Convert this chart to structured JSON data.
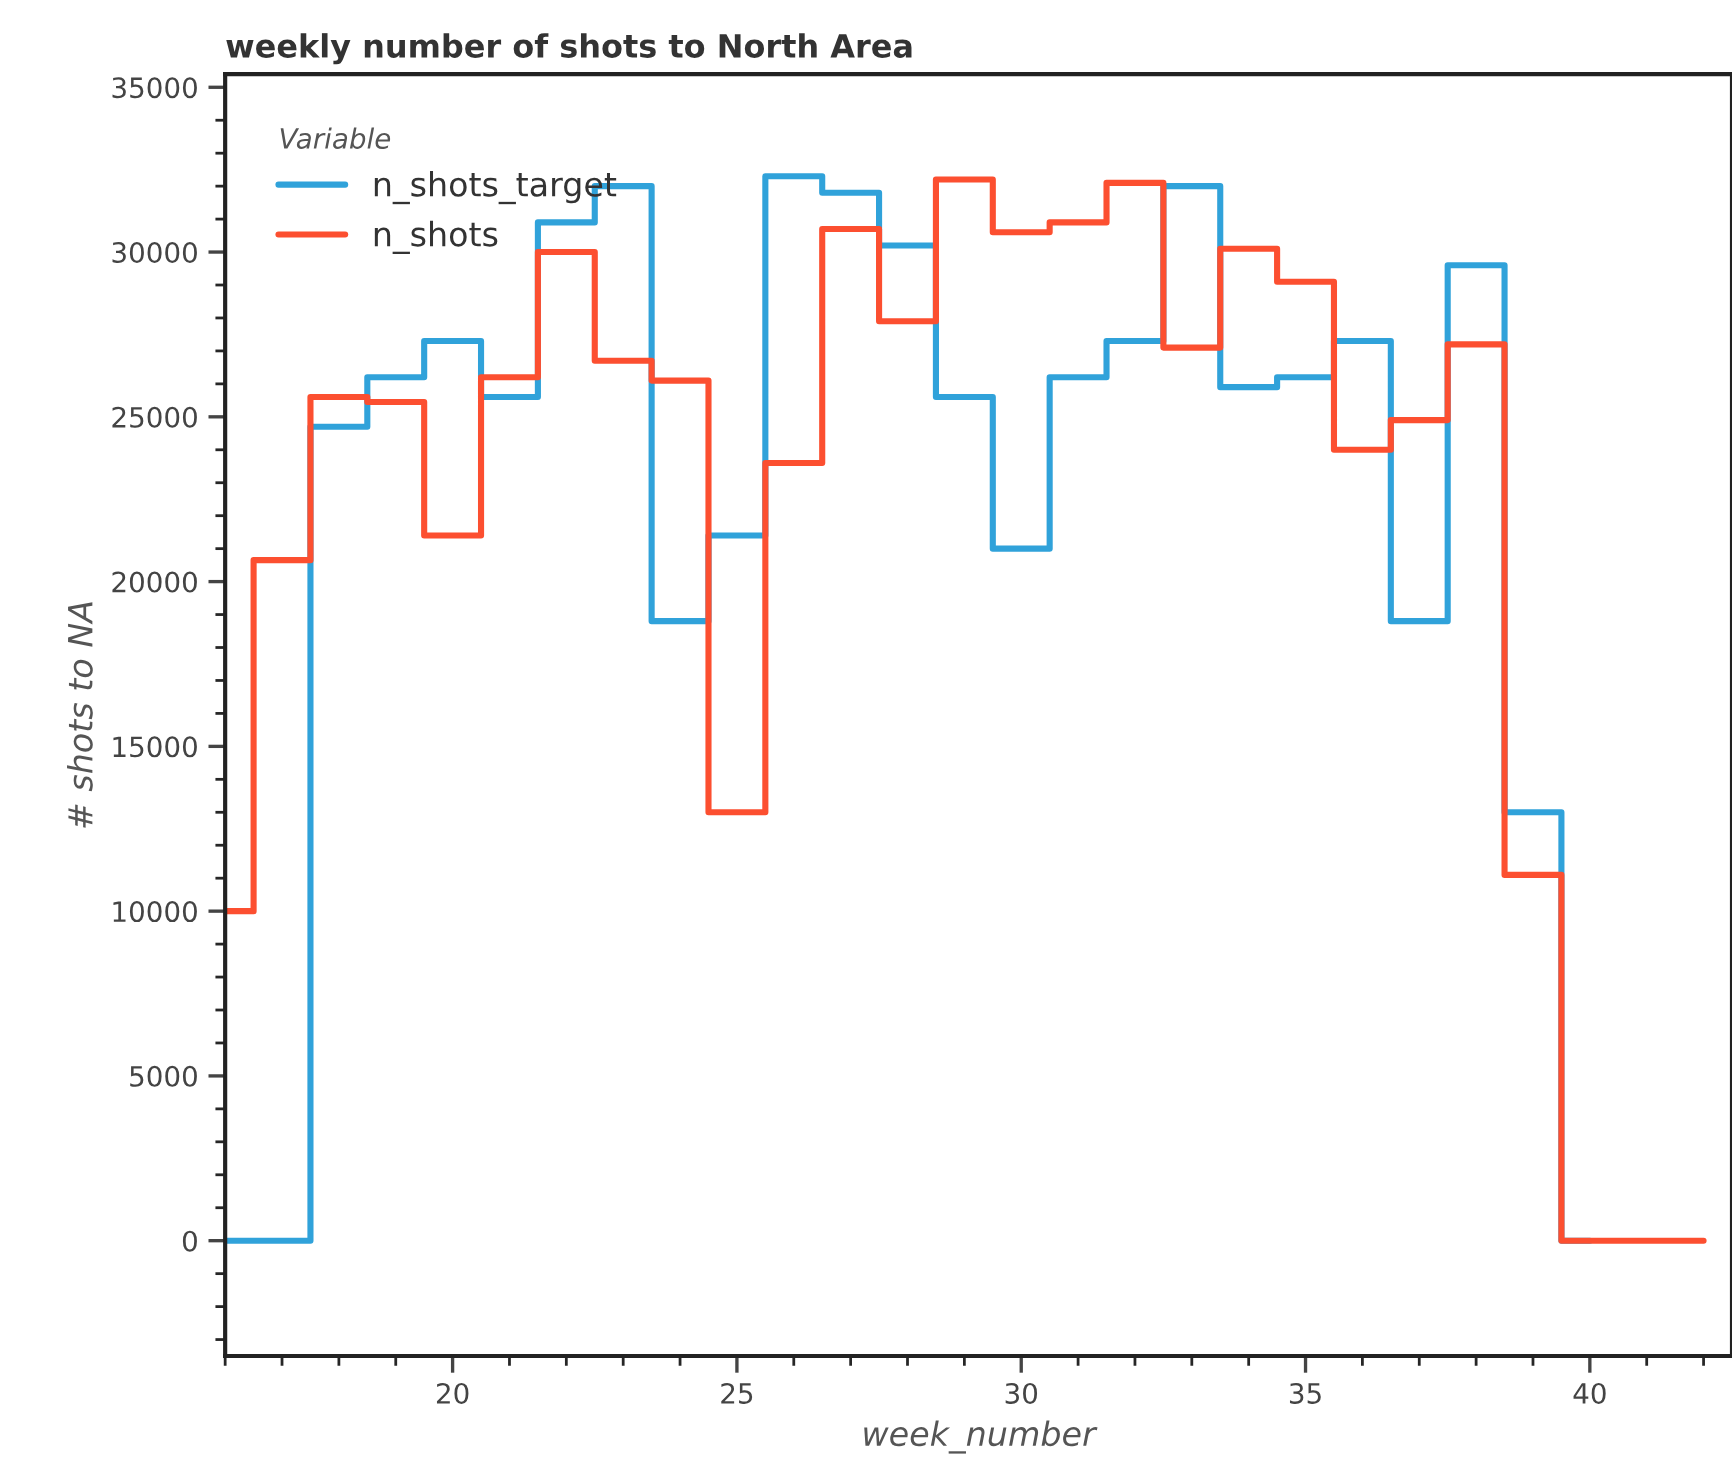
{
  "chart_data": {
    "type": "step",
    "title": "weekly number of shots to North Area",
    "xlabel": "week_number",
    "ylabel": "# shots to NA",
    "legend_title": "Variable",
    "legend": "top left",
    "grid": false,
    "line_style": "solid",
    "marker": "none",
    "x": [
      16,
      17,
      18,
      19,
      20,
      21,
      22,
      23,
      24,
      25,
      26,
      27,
      28,
      29,
      30,
      31,
      32,
      33,
      34,
      35,
      36,
      37,
      38,
      39,
      40,
      41,
      42
    ],
    "series": [
      {
        "name": "n_shots_target",
        "color": "#30a2da",
        "values": [
          0,
          0,
          24700,
          26200,
          27300,
          25600,
          30900,
          32000,
          18800,
          21400,
          32300,
          31800,
          30200,
          25600,
          21000,
          26200,
          27300,
          32000,
          25900,
          26200,
          27300,
          18800,
          29600,
          13000,
          0,
          null,
          null
        ]
      },
      {
        "name": "n_shots",
        "color": "#fc4f30",
        "values": [
          10000,
          20650,
          25600,
          25450,
          21400,
          26200,
          30000,
          26700,
          26100,
          13000,
          23600,
          30700,
          27900,
          32200,
          30600,
          30900,
          32100,
          27100,
          30100,
          29100,
          24000,
          24900,
          27200,
          11100,
          0,
          0,
          0
        ]
      }
    ],
    "xlim": [
      16,
      42.5
    ],
    "xticks": [
      20,
      25,
      30,
      35,
      40
    ],
    "ylim": [
      -3500,
      35400
    ],
    "yticks": [
      0,
      5000,
      10000,
      15000,
      20000,
      25000,
      30000,
      35000
    ]
  }
}
